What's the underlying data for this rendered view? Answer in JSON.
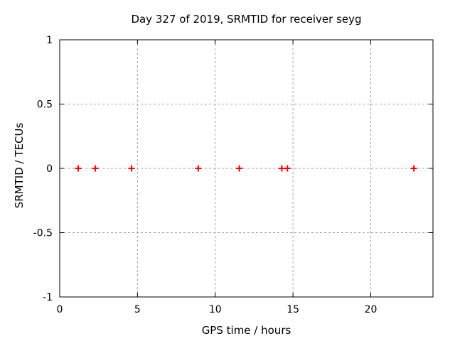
{
  "chart_data": {
    "type": "scatter",
    "title": "Day 327 of 2019, SRMTID for receiver seyg",
    "xlabel": "GPS time / hours",
    "ylabel": "SRMTID / TECUs",
    "xlim": [
      0,
      24
    ],
    "ylim": [
      -1,
      1
    ],
    "xticks": [
      0,
      5,
      10,
      15,
      20
    ],
    "xtick_labels": [
      "0",
      "5",
      "10",
      "15",
      "20"
    ],
    "yticks": [
      -1,
      -0.5,
      0,
      0.5,
      1
    ],
    "ytick_labels": [
      "-1",
      "-0.5",
      "0",
      "0.5",
      "1"
    ],
    "grid": true,
    "legend_position": "none",
    "marker": {
      "shape": "plus",
      "color": "#ff0000",
      "size": 9,
      "stroke_width": 2
    },
    "colors": {
      "axis": "#000000",
      "grid": "#a0a0a0",
      "text": "#000000",
      "background": "#ffffff"
    },
    "series": [
      {
        "name": "SRMTID",
        "x": [
          1.19,
          2.29,
          4.62,
          8.91,
          11.55,
          14.28,
          14.64,
          22.77
        ],
        "y": [
          0,
          0,
          0,
          0,
          0,
          0,
          0,
          0
        ]
      }
    ]
  }
}
